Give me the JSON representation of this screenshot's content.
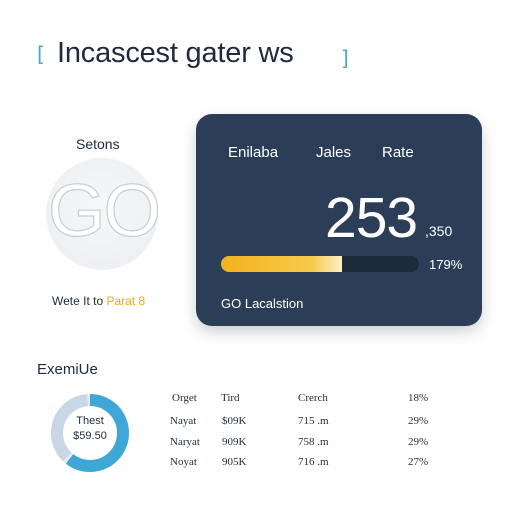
{
  "header": {
    "title": "Incascest gater ws",
    "bracket_left": "[",
    "bracket_right": "]"
  },
  "logo_block": {
    "label": "Setons",
    "logo_text": "GO",
    "caption_main": "Wete It to ",
    "caption_accent": "Parat 8"
  },
  "card": {
    "headers": [
      "Enilaba",
      "Jales",
      "Rate"
    ],
    "big_value": "253",
    "small_value": ",350",
    "progress_fraction": 0.61,
    "progress_label": "179%",
    "footer": "GO Lacalstion"
  },
  "summary": {
    "title": "ExemiUe",
    "donut_line1": "Thest",
    "donut_line2": "$59.50",
    "donut_segments": [
      0.62,
      0.38
    ],
    "columns": [
      "Orget",
      "Tird",
      "Crerch",
      "18%"
    ],
    "rows": [
      [
        "Nayat",
        "$09K",
        "715 .m",
        "29%"
      ],
      [
        "Naryat",
        "909K",
        "758 .m",
        "29%"
      ],
      [
        "Noyat",
        "905K",
        "716 .m",
        "27%"
      ]
    ]
  },
  "colors": {
    "accent_blue": "#4aa3d8",
    "card_bg": "#2c3e57",
    "progress_yellow": "#f3b21c",
    "donut_light": "#c9d6e6"
  }
}
